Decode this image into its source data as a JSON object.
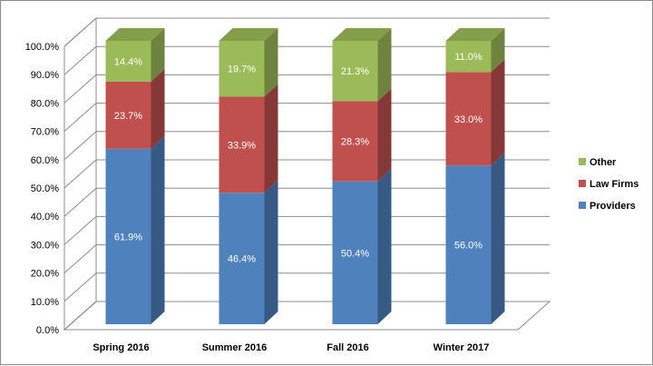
{
  "chart_data": {
    "type": "bar",
    "stacked": true,
    "three_d": true,
    "categories": [
      "Spring 2016",
      "Summer 2016",
      "Fall 2016",
      "Winter 2017"
    ],
    "series": [
      {
        "name": "Providers",
        "values": [
          61.9,
          46.4,
          50.4,
          56.0
        ],
        "color": "#4f81bd"
      },
      {
        "name": "Law Firms",
        "values": [
          23.7,
          33.9,
          28.3,
          33.0
        ],
        "color": "#c0504d"
      },
      {
        "name": "Other",
        "values": [
          14.4,
          19.7,
          21.3,
          11.0
        ],
        "color": "#9bbb59"
      }
    ],
    "data_labels": [
      [
        "61.9%",
        "46.4%",
        "50.4%",
        "56.0%"
      ],
      [
        "23.7%",
        "33.9%",
        "28.3%",
        "33.0%"
      ],
      [
        "14.4%",
        "19.7%",
        "21.3%",
        "11.0%"
      ]
    ],
    "y_ticks": [
      "0.0%",
      "10.0%",
      "20.0%",
      "30.0%",
      "40.0%",
      "50.0%",
      "60.0%",
      "70.0%",
      "80.0%",
      "90.0%",
      "100.0%"
    ],
    "ylim": [
      0,
      100
    ],
    "grid": true,
    "legend_position": "right",
    "legend_order": [
      "Other",
      "Law Firms",
      "Providers"
    ]
  }
}
